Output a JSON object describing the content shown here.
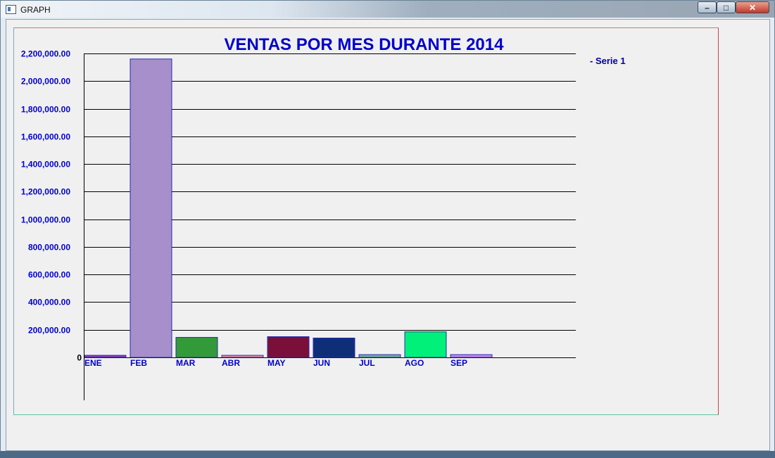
{
  "window": {
    "title": "GRAPH",
    "min_glyph": "–",
    "max_glyph": "□",
    "close_glyph": "✕"
  },
  "chart_data": {
    "type": "bar",
    "title": "VENTAS POR MES DURANTE 2014",
    "xlabel": "",
    "ylabel": "",
    "categories": [
      "ENE",
      "FEB",
      "MAR",
      "ABR",
      "MAY",
      "JUN",
      "JUL",
      "AGO",
      "SEP"
    ],
    "series": [
      {
        "name": "- Serie 1",
        "values": [
          15000,
          2160000,
          145000,
          15000,
          150000,
          140000,
          20000,
          185000,
          20000
        ],
        "colors": [
          "#8a3fb8",
          "#a68fca",
          "#339a3a",
          "#e8909a",
          "#7a0f3a",
          "#0e2f78",
          "#6fb48e",
          "#00f07a",
          "#c88ae8"
        ]
      }
    ],
    "ylim": [
      0,
      2200000
    ],
    "yticks": [
      0,
      200000,
      400000,
      600000,
      800000,
      1000000,
      1200000,
      1400000,
      1600000,
      1800000,
      2000000,
      2200000
    ],
    "ytick_labels": [
      "0",
      "200,000.00",
      "400,000.00",
      "600,000.00",
      "800,000.00",
      "1,000,000.00",
      "1,200,000.00",
      "1,400,000.00",
      "1,600,000.00",
      "1,800,000.00",
      "2,000,000.00",
      "2,200,000.00"
    ],
    "grid": true,
    "legend": "top-right",
    "accent_color": "#0000cc"
  }
}
